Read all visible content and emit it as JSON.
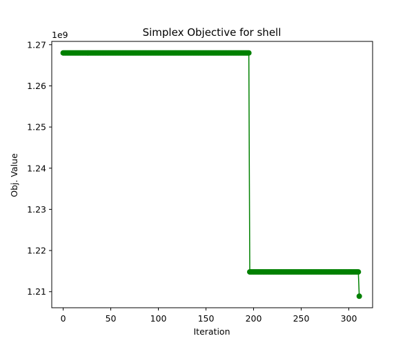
{
  "chart_data": {
    "type": "line",
    "title": "Simplex Objective for shell",
    "xlabel": "Iteration",
    "ylabel": "Obj. Value",
    "y_offset_label": "1e9",
    "xlim": [
      -12,
      325
    ],
    "ylim": [
      1.2061,
      1.2708
    ],
    "x_ticks": [
      0,
      50,
      100,
      150,
      200,
      250,
      300
    ],
    "x_tick_labels": [
      "0",
      "50",
      "100",
      "150",
      "200",
      "250",
      "300"
    ],
    "y_ticks": [
      1.21,
      1.22,
      1.23,
      1.24,
      1.25,
      1.26,
      1.27
    ],
    "y_tick_labels": [
      "1.21",
      "1.22",
      "1.23",
      "1.24",
      "1.25",
      "1.26",
      "1.27"
    ],
    "grid": false,
    "color": "#008000",
    "marker": "circle",
    "series": [
      {
        "segments": [
          {
            "x_start": 0,
            "x_end": 195,
            "y": 1.268
          },
          {
            "x_start": 196,
            "x_end": 310,
            "y": 1.2148
          },
          {
            "x_start": 311,
            "x_end": 311,
            "y": 1.2089
          }
        ]
      }
    ]
  }
}
